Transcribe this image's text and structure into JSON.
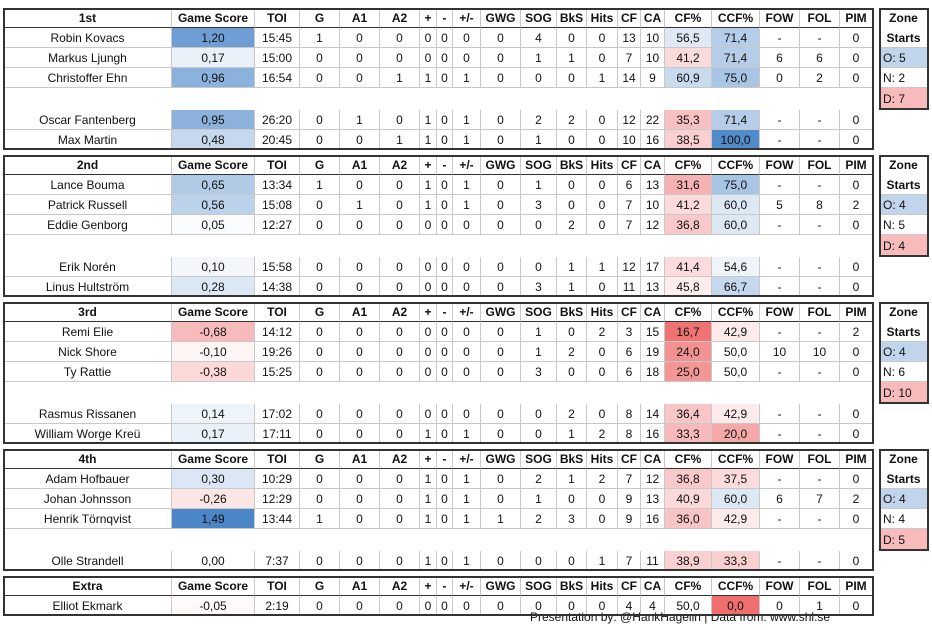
{
  "blocks": [
    {
      "header": [
        "1st",
        "Game Score",
        "TOI",
        "G",
        "A1",
        "A2",
        "+",
        "-",
        "+/-",
        "GWG",
        "SOG",
        "BkS",
        "Hits",
        "CF",
        "CA",
        "CF%",
        "CCF%",
        "FOW",
        "FOL",
        "PIM"
      ],
      "forwards": [
        [
          "Robin Kovacs",
          "1,20",
          "15:45",
          "1",
          "0",
          "0",
          "0",
          "0",
          "0",
          "0",
          "4",
          "0",
          "0",
          "13",
          "10",
          "56,5",
          "71,4",
          "-",
          "-",
          "0"
        ],
        [
          "Markus Ljungh",
          "0,17",
          "15:00",
          "0",
          "0",
          "0",
          "0",
          "0",
          "0",
          "0",
          "1",
          "1",
          "0",
          "7",
          "10",
          "41,2",
          "71,4",
          "6",
          "6",
          "0"
        ],
        [
          "Christoffer Ehn",
          "0,96",
          "16:54",
          "0",
          "0",
          "1",
          "1",
          "0",
          "1",
          "0",
          "0",
          "0",
          "1",
          "14",
          "9",
          "60,9",
          "75,0",
          "0",
          "2",
          "0"
        ]
      ],
      "defense": [
        [
          "Oscar Fantenberg",
          "0,95",
          "26:20",
          "0",
          "1",
          "0",
          "1",
          "0",
          "1",
          "0",
          "2",
          "2",
          "0",
          "12",
          "22",
          "35,3",
          "71,4",
          "-",
          "-",
          "0"
        ],
        [
          "Max Martin",
          "0,48",
          "20:45",
          "0",
          "0",
          "1",
          "1",
          "0",
          "1",
          "0",
          "1",
          "0",
          "0",
          "10",
          "16",
          "38,5",
          "100,0",
          "-",
          "-",
          "0"
        ]
      ],
      "zone": {
        "title": [
          "Zone",
          "Starts"
        ],
        "items": [
          "O: 5",
          "N: 2",
          "D: 7"
        ]
      }
    },
    {
      "header": [
        "2nd",
        "Game Score",
        "TOI",
        "G",
        "A1",
        "A2",
        "+",
        "-",
        "+/-",
        "GWG",
        "SOG",
        "BkS",
        "Hits",
        "CF",
        "CA",
        "CF%",
        "CCF%",
        "FOW",
        "FOL",
        "PIM"
      ],
      "forwards": [
        [
          "Lance Bouma",
          "0,65",
          "13:34",
          "1",
          "0",
          "0",
          "1",
          "0",
          "1",
          "0",
          "1",
          "0",
          "0",
          "6",
          "13",
          "31,6",
          "75,0",
          "-",
          "-",
          "0"
        ],
        [
          "Patrick Russell",
          "0,56",
          "15:08",
          "0",
          "1",
          "0",
          "1",
          "0",
          "1",
          "0",
          "3",
          "0",
          "0",
          "7",
          "10",
          "41,2",
          "60,0",
          "5",
          "8",
          "2"
        ],
        [
          "Eddie Genborg",
          "0,05",
          "12:27",
          "0",
          "0",
          "0",
          "0",
          "0",
          "0",
          "0",
          "0",
          "2",
          "0",
          "7",
          "12",
          "36,8",
          "60,0",
          "-",
          "-",
          "0"
        ]
      ],
      "defense": [
        [
          "Erik Norén",
          "0,10",
          "15:58",
          "0",
          "0",
          "0",
          "0",
          "0",
          "0",
          "0",
          "0",
          "1",
          "1",
          "12",
          "17",
          "41,4",
          "54,6",
          "-",
          "-",
          "0"
        ],
        [
          "Linus Hultström",
          "0,28",
          "14:38",
          "0",
          "0",
          "0",
          "0",
          "0",
          "0",
          "0",
          "3",
          "1",
          "0",
          "11",
          "13",
          "45,8",
          "66,7",
          "-",
          "-",
          "0"
        ]
      ],
      "zone": {
        "title": [
          "Zone",
          "Starts"
        ],
        "items": [
          "O: 4",
          "N: 5",
          "D: 4"
        ]
      }
    },
    {
      "header": [
        "3rd",
        "Game Score",
        "TOI",
        "G",
        "A1",
        "A2",
        "+",
        "-",
        "+/-",
        "GWG",
        "SOG",
        "BkS",
        "Hits",
        "CF",
        "CA",
        "CF%",
        "CCF%",
        "FOW",
        "FOL",
        "PIM"
      ],
      "forwards": [
        [
          "Remi Elie",
          "-0,68",
          "14:12",
          "0",
          "0",
          "0",
          "0",
          "0",
          "0",
          "0",
          "1",
          "0",
          "2",
          "3",
          "15",
          "16,7",
          "42,9",
          "-",
          "-",
          "2"
        ],
        [
          "Nick Shore",
          "-0,10",
          "19:26",
          "0",
          "0",
          "0",
          "0",
          "0",
          "0",
          "0",
          "1",
          "2",
          "0",
          "6",
          "19",
          "24,0",
          "50,0",
          "10",
          "10",
          "0"
        ],
        [
          "Ty Rattie",
          "-0,38",
          "15:25",
          "0",
          "0",
          "0",
          "0",
          "0",
          "0",
          "0",
          "3",
          "0",
          "0",
          "6",
          "18",
          "25,0",
          "50,0",
          "-",
          "-",
          "0"
        ]
      ],
      "defense": [
        [
          "Rasmus Rissanen",
          "0,14",
          "17:02",
          "0",
          "0",
          "0",
          "0",
          "0",
          "0",
          "0",
          "0",
          "2",
          "0",
          "8",
          "14",
          "36,4",
          "42,9",
          "-",
          "-",
          "0"
        ],
        [
          "William Worge Kreü",
          "0,17",
          "17:11",
          "0",
          "0",
          "0",
          "1",
          "0",
          "1",
          "0",
          "0",
          "1",
          "2",
          "8",
          "16",
          "33,3",
          "20,0",
          "-",
          "-",
          "0"
        ]
      ],
      "zone": {
        "title": [
          "Zone",
          "Starts"
        ],
        "items": [
          "O: 4",
          "N: 6",
          "D: 10"
        ]
      }
    },
    {
      "header": [
        "4th",
        "Game Score",
        "TOI",
        "G",
        "A1",
        "A2",
        "+",
        "-",
        "+/-",
        "GWG",
        "SOG",
        "BkS",
        "Hits",
        "CF",
        "CA",
        "CF%",
        "CCF%",
        "FOW",
        "FOL",
        "PIM"
      ],
      "forwards": [
        [
          "Adam Hofbauer",
          "0,30",
          "10:29",
          "0",
          "0",
          "0",
          "1",
          "0",
          "1",
          "0",
          "2",
          "1",
          "2",
          "7",
          "12",
          "36,8",
          "37,5",
          "-",
          "-",
          "0"
        ],
        [
          "Johan Johnsson",
          "-0,26",
          "12:29",
          "0",
          "0",
          "0",
          "1",
          "0",
          "1",
          "0",
          "1",
          "0",
          "0",
          "9",
          "13",
          "40,9",
          "60,0",
          "6",
          "7",
          "2"
        ],
        [
          "Henrik Törnqvist",
          "1,49",
          "13:44",
          "1",
          "0",
          "0",
          "1",
          "0",
          "1",
          "1",
          "2",
          "3",
          "0",
          "9",
          "16",
          "36,0",
          "42,9",
          "-",
          "-",
          "0"
        ]
      ],
      "defense": [
        [
          "Olle Strandell",
          "0,00",
          "7:37",
          "0",
          "0",
          "0",
          "1",
          "0",
          "1",
          "0",
          "0",
          "0",
          "1",
          "7",
          "11",
          "38,9",
          "33,3",
          "-",
          "-",
          "0"
        ]
      ],
      "zone": {
        "title": [
          "Zone",
          "Starts"
        ],
        "items": [
          "O: 4",
          "N: 4",
          "D: 5"
        ]
      }
    },
    {
      "header": [
        "Extra",
        "Game Score",
        "TOI",
        "G",
        "A1",
        "A2",
        "+",
        "-",
        "+/-",
        "GWG",
        "SOG",
        "BkS",
        "Hits",
        "CF",
        "CA",
        "CF%",
        "CCF%",
        "FOW",
        "FOL",
        "PIM"
      ],
      "forwards": [
        [
          "Elliot Ekmark",
          "-0,05",
          "2:19",
          "0",
          "0",
          "0",
          "0",
          "0",
          "0",
          "0",
          "0",
          "0",
          "0",
          "4",
          "4",
          "50,0",
          "0,0",
          "0",
          "1",
          "0"
        ]
      ]
    }
  ],
  "footer": "Presentation by: @HankHagelin | Data from: www.shl.se"
}
